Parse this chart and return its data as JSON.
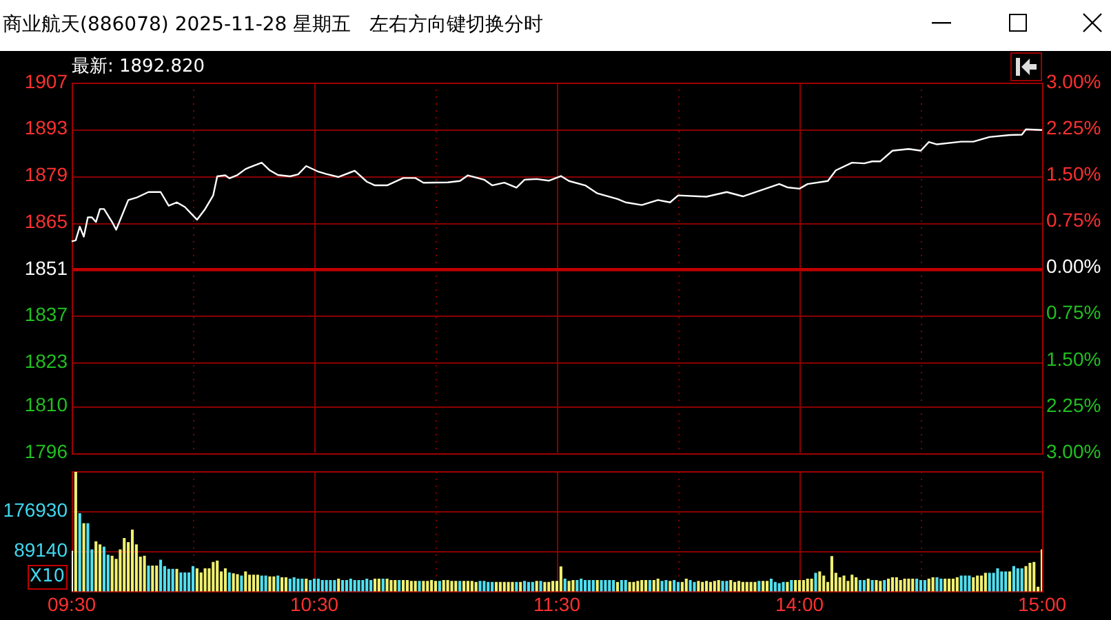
{
  "chart_data": [
    {
      "type": "line",
      "title": "商业航天(886078) 2025-11-28 星期五",
      "subtitle": "左右方向键切换分时",
      "annotations": [
        "最新: 1892.820"
      ],
      "categories": [
        null,
        null,
        null,
        null,
        null,
        null,
        null,
        null,
        null,
        null,
        null,
        null,
        null,
        null,
        null,
        null,
        null,
        null,
        null,
        null,
        null,
        null,
        null,
        null,
        null,
        null,
        null,
        null,
        null,
        null,
        null,
        null,
        null,
        null,
        null,
        null,
        null,
        null,
        null,
        null,
        null,
        null,
        null,
        null,
        null,
        null,
        null,
        null,
        null,
        null,
        null,
        null,
        null,
        null,
        null,
        null,
        null,
        null,
        null,
        null,
        null,
        null,
        null,
        null,
        null,
        null,
        null,
        null,
        null,
        null,
        null,
        null,
        null,
        null,
        null,
        null,
        null,
        null,
        null,
        null,
        null,
        null,
        null,
        null,
        null,
        null,
        null,
        null,
        null,
        null,
        null,
        null,
        null,
        null,
        null,
        null,
        null,
        null,
        null,
        null,
        null,
        null,
        null,
        null,
        null,
        null,
        null,
        null,
        null,
        null,
        null,
        null,
        null,
        null,
        null,
        null,
        null,
        null,
        null,
        null,
        null,
        null,
        null,
        null,
        null,
        null,
        null,
        null,
        null,
        null,
        null,
        null,
        null,
        null,
        null,
        null,
        null,
        null,
        null,
        null,
        null,
        null,
        null,
        null,
        null,
        null,
        null,
        null,
        null,
        null,
        null,
        null,
        null,
        null,
        null,
        null,
        null,
        null,
        null,
        null,
        null,
        null,
        null,
        null,
        null,
        null,
        null,
        null,
        null,
        null,
        null,
        null,
        null,
        null,
        null,
        null,
        null,
        null,
        null,
        null,
        null,
        null,
        null,
        null,
        null,
        null,
        null,
        null,
        null,
        null,
        null,
        null,
        null,
        null,
        null,
        null,
        null,
        null,
        null,
        null,
        null,
        null,
        null,
        null,
        null,
        null,
        null,
        null,
        null,
        null,
        null,
        null,
        null,
        null,
        null,
        null,
        null,
        null,
        null,
        null,
        null,
        null,
        null,
        null,
        null,
        null,
        null,
        null,
        null,
        null,
        null,
        null,
        null,
        null,
        null,
        null,
        null,
        null,
        null,
        null,
        null
      ],
      "series": [
        {
          "color": "#ffffff",
          "values": [
            1859.4,
            1859.7,
            1863.8,
            1860.8,
            1866.6,
            1866.6,
            1865.2,
            1869.1,
            1869.1,
            null,
            1865.2,
            1862.9,
            null,
            null,
            1871.8,
            null,
            1872.5,
            null,
            null,
            1874.2,
            null,
            null,
            1874.2,
            null,
            1870.1,
            null,
            1871.1,
            null,
            1869.7,
            null,
            null,
            1865.9,
            null,
            1869.1,
            null,
            1873.2,
            1878.9,
            null,
            1879.2,
            1878.3,
            null,
            1879.3,
            null,
            1881.1,
            1881.6,
            null,
            null,
            1883,
            null,
            1880.7,
            null,
            1879.3,
            null,
            null,
            1878.9,
            null,
            1879.5,
            null,
            1882,
            null,
            null,
            1880.3,
            null,
            1879.6,
            null,
            null,
            1878.7,
            null,
            null,
            null,
            1880.6,
            null,
            null,
            1877.3,
            null,
            1876.2,
            null,
            null,
            1876.2,
            null,
            null,
            null,
            1878.4,
            null,
            null,
            1878.4,
            null,
            1877,
            null,
            null,
            null,
            null,
            null,
            1877.1,
            null,
            null,
            1877.5,
            null,
            1879.2,
            null,
            null,
            null,
            1877.9,
            null,
            1876.2,
            null,
            null,
            1877,
            null,
            null,
            1875.5,
            null,
            1877.9,
            null,
            null,
            1878.1,
            null,
            null,
            1877.6,
            null,
            null,
            1879,
            null,
            1877.5,
            null,
            null,
            null,
            1876.2,
            null,
            null,
            1873.8,
            null,
            null,
            null,
            null,
            1872.1,
            null,
            1871.1,
            null,
            null,
            null,
            1870.3,
            null,
            null,
            null,
            1871.8,
            null,
            null,
            1871.1,
            null,
            1873.2,
            null,
            null,
            null,
            null,
            null,
            null,
            1872.8,
            null,
            null,
            null,
            null,
            1874.2,
            null,
            null,
            null,
            1872.9,
            null,
            null,
            1874.1,
            null,
            null,
            null,
            null,
            null,
            1876.6,
            null,
            1875.6,
            null,
            null,
            1875.2,
            null,
            1876.6,
            null,
            null,
            null,
            null,
            1877.5,
            null,
            1880.7,
            null,
            null,
            null,
            1883,
            null,
            null,
            1882.8,
            null,
            1883.4,
            null,
            1883.4,
            null,
            null,
            1886.6,
            null,
            null,
            null,
            1887.1,
            null,
            null,
            1886.6,
            null,
            1889.2,
            null,
            1888.5,
            null,
            null,
            null,
            null,
            null,
            1889.3,
            null,
            null,
            1889.3,
            null,
            null,
            null,
            1890.7,
            null,
            null,
            null,
            null,
            1891.3,
            null,
            null,
            1891.4,
            1893,
            null,
            null,
            null,
            1892.8
          ]
        }
      ],
      "ylim": [
        1796,
        1907
      ],
      "yticks": [
        1796,
        1810,
        1823,
        1837,
        1851,
        1865,
        1879,
        1893,
        1907
      ],
      "y2lim": [
        -3,
        3
      ],
      "y2ticks": [
        {
          "value": -3,
          "label": "3.00%"
        },
        {
          "value": -2.25,
          "label": "2.25%"
        },
        {
          "value": -1.5,
          "label": "1.50%"
        },
        {
          "value": -0.75,
          "label": "0.75%"
        },
        {
          "value": 0,
          "label": "0.00%"
        },
        {
          "value": 0.75,
          "label": "0.75%"
        },
        {
          "value": 1.5,
          "label": "1.50%"
        },
        {
          "value": 2.25,
          "label": "2.25%"
        },
        {
          "value": 3,
          "label": "3.00%"
        }
      ],
      "ref_lines": [
        {
          "axis": "y",
          "value": 1851,
          "color": "#c00000"
        }
      ],
      "grid": true,
      "legend": false,
      "tick_labels": "y"
    },
    {
      "type": "bar",
      "annotations": [
        "X10"
      ],
      "categories": [
        "09:30",
        null,
        null,
        null,
        null,
        null,
        null,
        null,
        null,
        null,
        null,
        null,
        null,
        null,
        null,
        null,
        null,
        null,
        null,
        null,
        null,
        null,
        null,
        null,
        null,
        null,
        null,
        null,
        null,
        null,
        null,
        null,
        null,
        null,
        null,
        null,
        null,
        null,
        null,
        null,
        null,
        null,
        null,
        null,
        null,
        null,
        null,
        null,
        null,
        null,
        null,
        null,
        null,
        null,
        null,
        null,
        null,
        null,
        null,
        null,
        "10:30",
        null,
        null,
        null,
        null,
        null,
        null,
        null,
        null,
        null,
        null,
        null,
        null,
        null,
        null,
        null,
        null,
        null,
        null,
        null,
        null,
        null,
        null,
        null,
        null,
        null,
        null,
        null,
        null,
        null,
        null,
        null,
        null,
        null,
        null,
        null,
        null,
        null,
        null,
        null,
        null,
        null,
        null,
        null,
        null,
        null,
        null,
        null,
        null,
        null,
        null,
        null,
        null,
        null,
        null,
        null,
        null,
        null,
        null,
        null,
        "11:30",
        null,
        null,
        null,
        null,
        null,
        null,
        null,
        null,
        null,
        null,
        null,
        null,
        null,
        null,
        null,
        null,
        null,
        null,
        null,
        null,
        null,
        null,
        null,
        null,
        null,
        null,
        null,
        null,
        null,
        null,
        null,
        null,
        null,
        null,
        null,
        null,
        null,
        null,
        null,
        null,
        null,
        null,
        null,
        null,
        null,
        null,
        null,
        null,
        null,
        null,
        null,
        null,
        null,
        null,
        null,
        null,
        null,
        null,
        null,
        "14:00",
        null,
        null,
        null,
        null,
        null,
        null,
        null,
        null,
        null,
        null,
        null,
        null,
        null,
        null,
        null,
        null,
        null,
        null,
        null,
        null,
        null,
        null,
        null,
        null,
        null,
        null,
        null,
        null,
        null,
        null,
        null,
        null,
        null,
        null,
        null,
        null,
        null,
        null,
        null,
        null,
        null,
        null,
        null,
        null,
        null,
        null,
        null,
        null,
        null,
        null,
        null,
        null,
        null,
        null,
        null,
        null,
        null,
        null,
        null,
        "15:00"
      ],
      "values": [
        89000,
        264000,
        172000,
        150000,
        150000,
        92000,
        110000,
        103000,
        98000,
        80000,
        78000,
        71000,
        92000,
        117000,
        108000,
        136000,
        103000,
        76000,
        78000,
        56000,
        56000,
        56000,
        69000,
        55000,
        49000,
        49000,
        49000,
        41000,
        41000,
        41000,
        55000,
        50000,
        41000,
        50000,
        50000,
        64000,
        67000,
        43000,
        50000,
        41000,
        39000,
        37000,
        34000,
        43000,
        36000,
        36000,
        36000,
        34000,
        34000,
        32000,
        32000,
        34000,
        30000,
        30000,
        27000,
        30000,
        27000,
        27000,
        27000,
        24000,
        27000,
        27000,
        24000,
        24000,
        24000,
        24000,
        27000,
        24000,
        24000,
        27000,
        24000,
        24000,
        24000,
        27000,
        24000,
        27000,
        27000,
        27000,
        27000,
        24000,
        24000,
        24000,
        24000,
        24000,
        22000,
        22000,
        22000,
        22000,
        22000,
        24000,
        22000,
        22000,
        24000,
        24000,
        22000,
        22000,
        22000,
        22000,
        22000,
        22000,
        20000,
        22000,
        22000,
        20000,
        20000,
        20000,
        20000,
        20000,
        20000,
        20000,
        20000,
        20000,
        22000,
        20000,
        20000,
        22000,
        22000,
        20000,
        20000,
        22000,
        22000,
        54000,
        27000,
        22000,
        24000,
        24000,
        27000,
        24000,
        24000,
        24000,
        24000,
        24000,
        24000,
        24000,
        24000,
        20000,
        24000,
        24000,
        20000,
        20000,
        22000,
        24000,
        24000,
        24000,
        24000,
        27000,
        22000,
        24000,
        22000,
        24000,
        20000,
        20000,
        27000,
        24000,
        20000,
        22000,
        20000,
        22000,
        20000,
        22000,
        24000,
        22000,
        22000,
        24000,
        20000,
        22000,
        20000,
        20000,
        20000,
        20000,
        22000,
        22000,
        22000,
        27000,
        20000,
        17000,
        20000,
        20000,
        24000,
        24000,
        24000,
        24000,
        27000,
        27000,
        40000,
        43000,
        34000,
        20000,
        77000,
        40000,
        30000,
        34000,
        22000,
        36000,
        30000,
        24000,
        24000,
        27000,
        24000,
        24000,
        22000,
        24000,
        27000,
        30000,
        30000,
        24000,
        27000,
        27000,
        27000,
        27000,
        24000,
        24000,
        27000,
        30000,
        30000,
        27000,
        27000,
        27000,
        27000,
        30000,
        34000,
        34000,
        34000,
        30000,
        34000,
        34000,
        40000,
        40000,
        40000,
        50000,
        43000,
        43000,
        43000,
        55000,
        50000,
        50000,
        55000,
        62000,
        64000,
        9000,
        92000
      ],
      "colors": [
        "#ffffff",
        "#f0f070",
        "#50e0f0",
        "#f0f070",
        "#50e0f0",
        "#50e0f0",
        "#f0f070",
        "#f0f070",
        "#50e0f0",
        "#50e0f0",
        "#f0f070",
        "#f0f070",
        "#f0f070",
        "#f0f070",
        "#f0f070",
        "#f0f070",
        "#f0f070",
        "#f0f070",
        "#f0f070",
        "#50e0f0",
        "#f0f070",
        "#f0f070",
        "#50e0f0",
        "#50e0f0",
        "#50e0f0",
        "#50e0f0",
        "#f0f070",
        "#50e0f0",
        "#50e0f0",
        "#50e0f0",
        "#50e0f0",
        "#f0f070",
        "#f0f070",
        "#f0f070",
        "#f0f070",
        "#f0f070",
        "#f0f070",
        "#f0f070",
        "#f0f070",
        "#50e0f0",
        "#f0f070",
        "#f0f070",
        "#50e0f0",
        "#f0f070",
        "#f0f070",
        "#f0f070",
        "#f0f070",
        "#50e0f0",
        "#50e0f0",
        "#f0f070",
        "#f0f070",
        "#50e0f0",
        "#f0f070",
        "#f0f070",
        "#50e0f0",
        "#50e0f0",
        "#50e0f0",
        "#50e0f0",
        "#f0f070",
        "#50e0f0",
        "#50e0f0",
        "#50e0f0",
        "#50e0f0",
        "#50e0f0",
        "#50e0f0",
        "#50e0f0",
        "#f0f070",
        "#50e0f0",
        "#50e0f0",
        "#50e0f0",
        "#50e0f0",
        "#50e0f0",
        "#50e0f0",
        "#50e0f0",
        "#50e0f0",
        "#f0f070",
        "#f0f070",
        "#50e0f0",
        "#f0f070",
        "#f0f070",
        "#f0f070",
        "#50e0f0",
        "#f0f070",
        "#f0f070",
        "#f0f070",
        "#f0f070",
        "#50e0f0",
        "#f0f070",
        "#f0f070",
        "#f0f070",
        "#f0f070",
        "#50e0f0",
        "#f0f070",
        "#f0f070",
        "#f0f070",
        "#f0f070",
        "#50e0f0",
        "#f0f070",
        "#f0f070",
        "#f0f070",
        "#f0f070",
        "#50e0f0",
        "#50e0f0",
        "#50e0f0",
        "#50e0f0",
        "#f0f070",
        "#f0f070",
        "#f0f070",
        "#f0f070",
        "#f0f070",
        "#50e0f0",
        "#f0f070",
        "#50e0f0",
        "#50e0f0",
        "#50e0f0",
        "#f0f070",
        "#50e0f0",
        "#f0f070",
        "#f0f070",
        "#f0f070",
        "#f0f070",
        "#f0f070",
        "#50e0f0",
        "#f0f070",
        "#f0f070",
        "#50e0f0",
        "#50e0f0",
        "#50e0f0",
        "#50e0f0",
        "#50e0f0",
        "#f0f070",
        "#50e0f0",
        "#50e0f0",
        "#50e0f0",
        "#50e0f0",
        "#f0f070",
        "#50e0f0",
        "#50e0f0",
        "#f0f070",
        "#f0f070",
        "#f0f070",
        "#f0f070",
        "#f0f070",
        "#50e0f0",
        "#f0f070",
        "#f0f070",
        "#50e0f0",
        "#50e0f0",
        "#f0f070",
        "#50e0f0",
        "#50e0f0",
        "#f0f070",
        "#f0f070",
        "#50e0f0",
        "#50e0f0",
        "#f0f070",
        "#f0f070",
        "#f0f070",
        "#f0f070",
        "#f0f070",
        "#f0f070",
        "#50e0f0",
        "#50e0f0",
        "#f0f070",
        "#f0f070",
        "#f0f070",
        "#f0f070",
        "#f0f070",
        "#f0f070",
        "#f0f070",
        "#50e0f0",
        "#f0f070",
        "#f0f070",
        "#50e0f0",
        "#50e0f0",
        "#50e0f0",
        "#50e0f0",
        "#f0f070",
        "#50e0f0",
        "#f0f070",
        "#f0f070",
        "#f0f070",
        "#f0f070",
        "#f0f070",
        "#50e0f0",
        "#f0f070",
        "#f0f070",
        "#f0f070",
        "#f0f070",
        "#f0f070",
        "#f0f070",
        "#f0f070",
        "#f0f070",
        "#f0f070",
        "#f0f070",
        "#50e0f0",
        "#50e0f0",
        "#f0f070",
        "#50e0f0",
        "#f0f070",
        "#f0f070",
        "#50e0f0",
        "#f0f070",
        "#f0f070",
        "#f0f070",
        "#f0f070",
        "#f0f070",
        "#f0f070",
        "#f0f070",
        "#50e0f0",
        "#50e0f0",
        "#50e0f0",
        "#f0f070",
        "#f0f070",
        "#50e0f0",
        "#50e0f0",
        "#f0f070",
        "#f0f070",
        "#f0f070",
        "#f0f070",
        "#50e0f0",
        "#50e0f0",
        "#50e0f0",
        "#f0f070",
        "#f0f070",
        "#f0f070",
        "#f0f070",
        "#50e0f0",
        "#50e0f0",
        "#50e0f0",
        "#50e0f0",
        "#50e0f0",
        "#f0f070",
        "#50e0f0",
        "#50e0f0",
        "#50e0f0",
        "#f0f070",
        "#f0f070",
        "#f0f070",
        "#f0f070",
        "#f0f070"
      ],
      "ylim": [
        0,
        265000
      ],
      "yticks": [
        89140,
        176930
      ],
      "grid": true,
      "legend": false
    }
  ]
}
